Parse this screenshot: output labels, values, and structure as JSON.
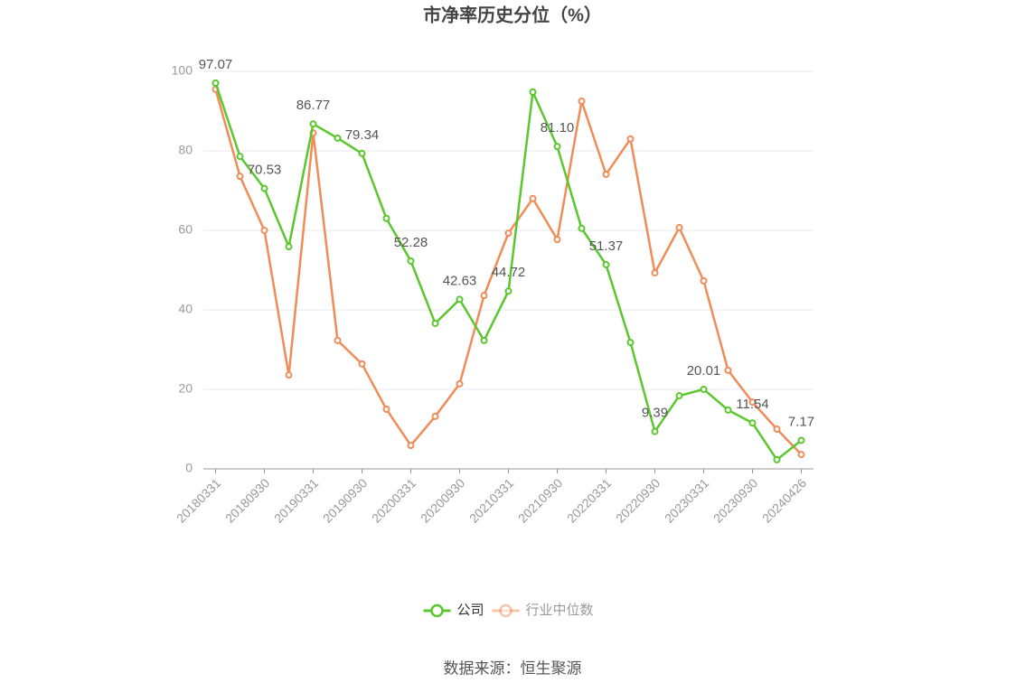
{
  "chart_data": {
    "type": "line",
    "title": "市净率历史分位（%）",
    "categories": [
      "20180331",
      null,
      "20180930",
      null,
      "20190331",
      null,
      "20190930",
      null,
      "20200331",
      null,
      "20200930",
      null,
      "20210331",
      null,
      "20210930",
      null,
      "20220331",
      null,
      "20220930",
      null,
      "20230331",
      null,
      "20230930",
      null,
      "20240426"
    ],
    "series": [
      {
        "name": "公司",
        "color": "#5bc72e",
        "values": [
          97.07,
          78.6,
          70.53,
          55.9,
          86.77,
          83.2,
          79.34,
          63.0,
          52.28,
          36.6,
          42.63,
          32.3,
          44.72,
          94.8,
          81.1,
          60.5,
          51.37,
          31.8,
          9.39,
          18.4,
          20.01,
          14.8,
          11.54,
          2.3,
          7.17
        ],
        "value_labels": [
          "97.07",
          null,
          "70.53",
          null,
          "86.77",
          null,
          "79.34",
          null,
          "52.28",
          null,
          "42.63",
          null,
          "44.72",
          null,
          "81.10",
          null,
          "51.37",
          null,
          "9.39",
          null,
          "20.01",
          null,
          "11.54",
          null,
          "7.17"
        ]
      },
      {
        "name": "行业中位数",
        "color": "#f08c58",
        "values": [
          95.5,
          73.6,
          60.0,
          23.6,
          84.5,
          32.3,
          26.4,
          15.0,
          5.9,
          13.2,
          21.4,
          43.6,
          59.3,
          68.0,
          57.7,
          92.5,
          74.1,
          83.0,
          49.3,
          60.7,
          47.3,
          24.8,
          16.8,
          10.0,
          3.6
        ]
      }
    ],
    "ylim": [
      0,
      100
    ],
    "yticks": [
      0,
      20,
      40,
      60,
      80,
      100
    ],
    "grid": true,
    "legend": "bottom",
    "source": "数据来源：恒生聚源"
  }
}
